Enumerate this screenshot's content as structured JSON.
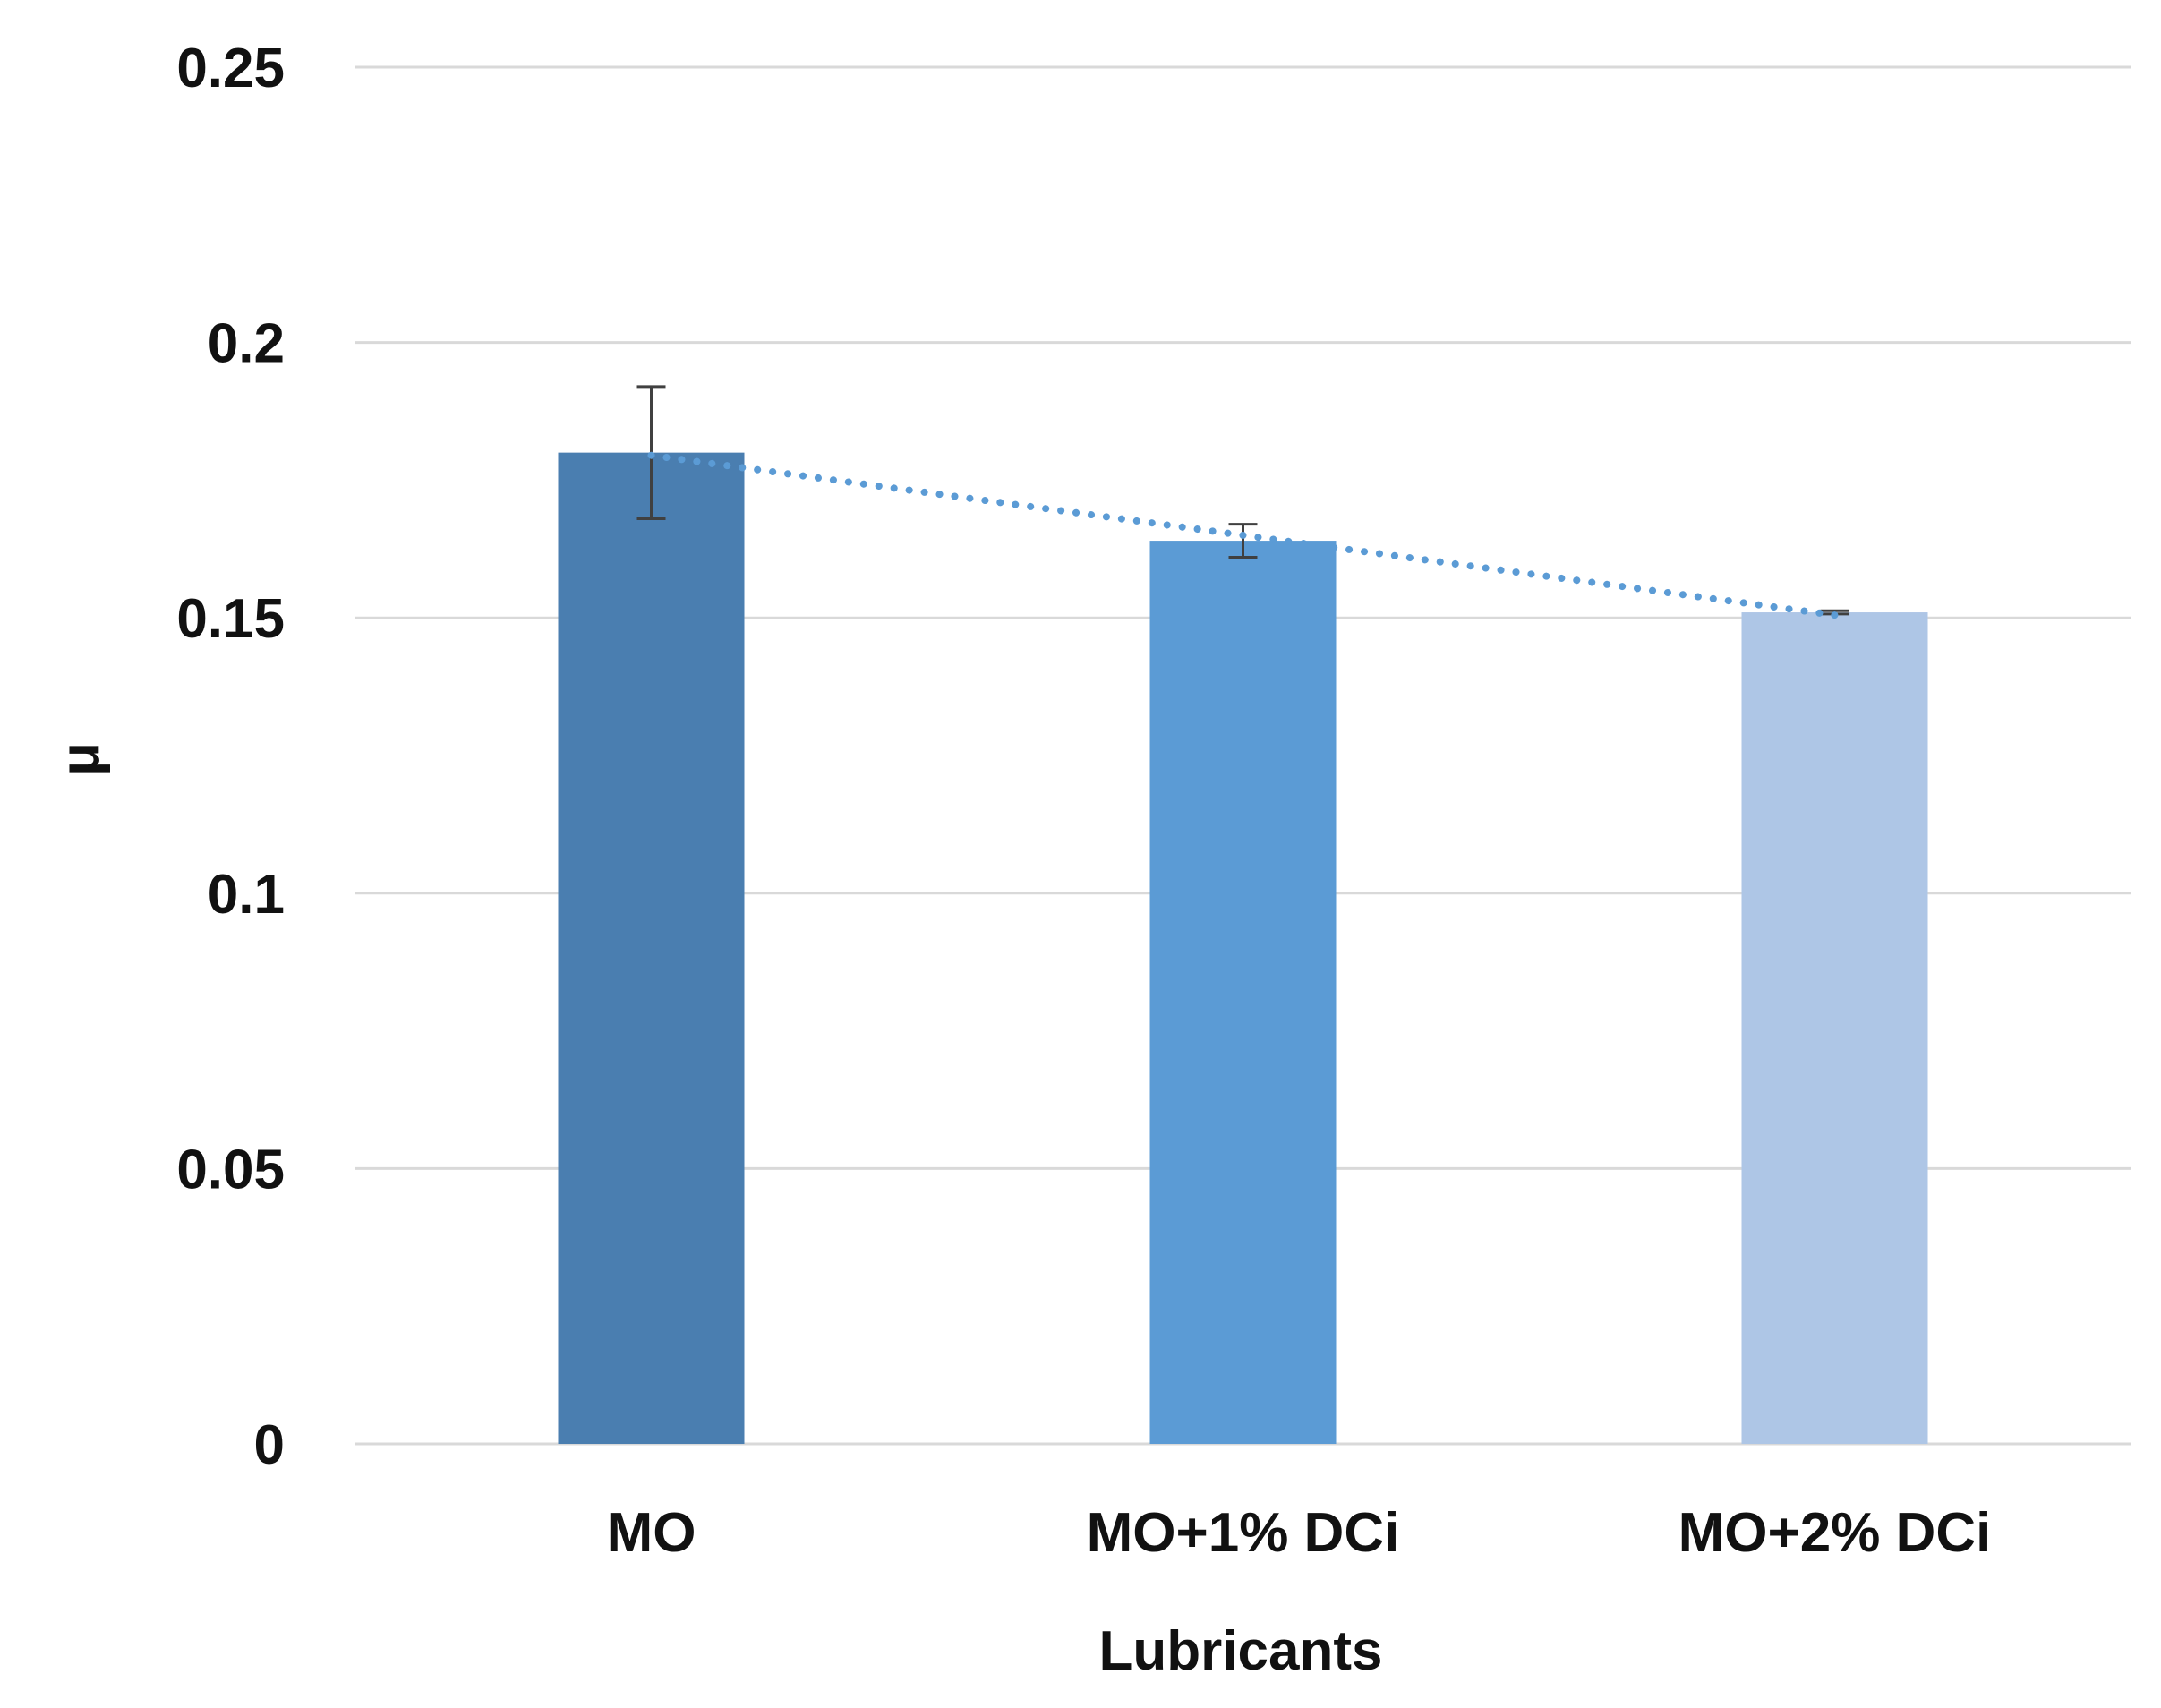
{
  "chart_data": {
    "type": "bar",
    "title": "",
    "xlabel": "Lubricants",
    "ylabel": "μ",
    "ylim": [
      0,
      0.25
    ],
    "yticks": [
      {
        "value": 0,
        "label": "0"
      },
      {
        "value": 0.05,
        "label": "0.05"
      },
      {
        "value": 0.1,
        "label": "0.1"
      },
      {
        "value": 0.15,
        "label": "0.15"
      },
      {
        "value": 0.2,
        "label": "0.2"
      },
      {
        "value": 0.25,
        "label": "0.25"
      }
    ],
    "grid": true,
    "categories": [
      "MO",
      "MO+1% DCi",
      "MO+2% DCi"
    ],
    "values": [
      0.18,
      0.164,
      0.151
    ],
    "errors": [
      0.012,
      0.003,
      0.0003
    ],
    "bar_colors": [
      "#4a7eb0",
      "#5b9bd5",
      "#aec6e6"
    ],
    "trendline": {
      "type": "linear",
      "style": "dotted",
      "color": "#5b9bd5"
    },
    "colors": {
      "grid": "#d9d9d9",
      "error_bar": "#404040",
      "text": "#111111"
    }
  }
}
